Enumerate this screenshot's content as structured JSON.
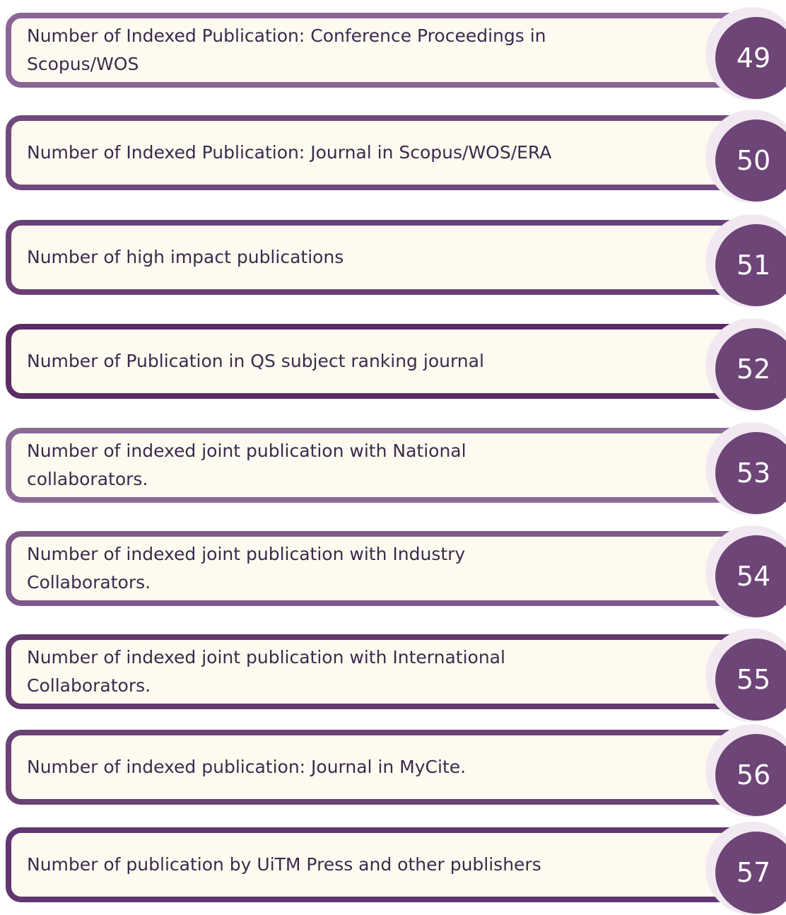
{
  "items": [
    {
      "label": "Number of Indexed Publication: Conference Proceedings in Scopus/WOS",
      "number": "49",
      "color": "#8a6596"
    },
    {
      "label": "Number of Indexed Publication: Journal in Scopus/WOS/ERA",
      "number": "50",
      "color": "#704a7c"
    },
    {
      "label": "Number of high impact publications",
      "number": "51",
      "color": "#6a4176"
    },
    {
      "label": "Number of Publication in QS subject ranking journal",
      "number": "52",
      "color": "#5a2d63"
    },
    {
      "label": "Number of indexed joint publication with National collaborators.",
      "number": "53",
      "color": "#8c6a98"
    },
    {
      "label": "Number of indexed joint publication with Industry Collaborators.",
      "number": "54",
      "color": "#7e5a8a"
    },
    {
      "label": "Number of indexed joint publication with International Collaborators.",
      "number": "55",
      "color": "#643a6f"
    },
    {
      "label": "Number of indexed publication: Journal in MyCite.",
      "number": "56",
      "color": "#6a4275"
    },
    {
      "label": "Number of publication by UiTM Press and other publishers",
      "number": "57",
      "color": "#603770"
    }
  ]
}
